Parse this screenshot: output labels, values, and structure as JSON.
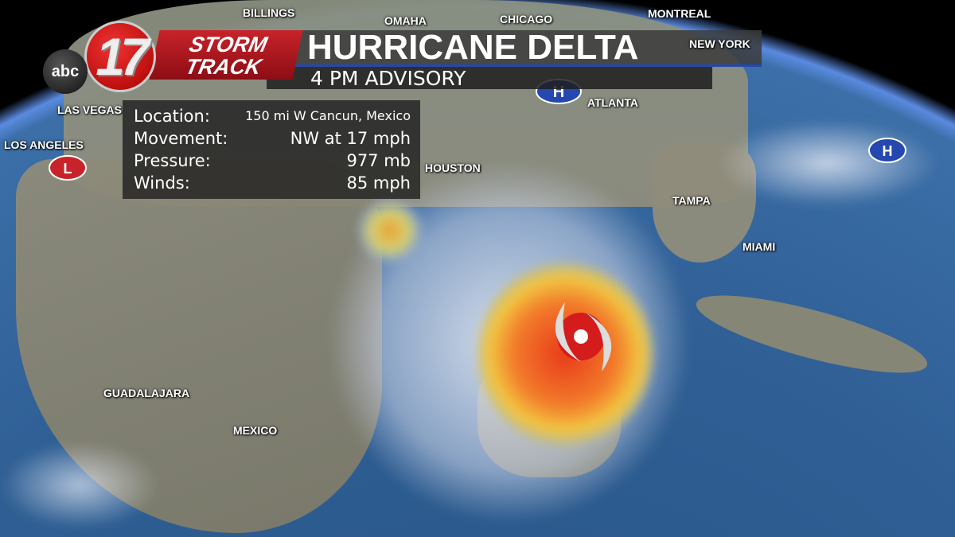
{
  "brand": {
    "network": "abc",
    "channel": "17",
    "show_line1": "STORM",
    "show_line2": "TRACK"
  },
  "header": {
    "title": "HURRICANE DELTA",
    "subtitle": "4 PM ADVISORY"
  },
  "info": [
    {
      "label": "Location:",
      "value": "150 mi W Cancun, Mexico"
    },
    {
      "label": "Movement:",
      "value": "NW at 17 mph"
    },
    {
      "label": "Pressure:",
      "value": "977 mb"
    },
    {
      "label": "Winds:",
      "value": "85 mph"
    }
  ],
  "cities": {
    "billings": "BILLINGS",
    "omaha": "OMAHA",
    "chicago": "CHICAGO",
    "montreal": "MONTREAL",
    "newyork": "NEW YORK",
    "atlanta": "ATLANTA",
    "lasvegas": "LAS VEGAS",
    "losangeles": "LOS ANGELES",
    "houston": "HOUSTON",
    "tampa": "TAMPA",
    "miami": "MIAMI",
    "guadalajara": "GUADALAJARA",
    "mexico": "MEXICO"
  },
  "pressure_centers": {
    "high": "H",
    "low": "L"
  },
  "colors": {
    "brand_red": "#c8232a",
    "title_accent": "#2448b0",
    "hurricane_red": "#d41c1c",
    "radar_orange": "#f06a20"
  }
}
